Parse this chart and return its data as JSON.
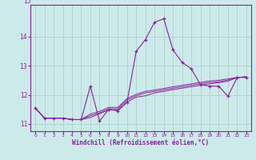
{
  "xlabel": "Windchill (Refroidissement éolien,°C)",
  "hours": [
    0,
    1,
    2,
    3,
    4,
    5,
    6,
    7,
    8,
    9,
    10,
    11,
    12,
    13,
    14,
    15,
    16,
    17,
    18,
    19,
    20,
    21,
    22,
    23
  ],
  "main_line": [
    11.55,
    11.2,
    11.2,
    11.2,
    11.15,
    11.15,
    12.3,
    11.1,
    11.5,
    11.45,
    11.75,
    13.5,
    13.9,
    14.5,
    14.62,
    13.55,
    13.12,
    12.9,
    12.35,
    12.3,
    12.3,
    11.95,
    12.6,
    12.6
  ],
  "line2": [
    11.55,
    11.2,
    11.2,
    11.2,
    11.15,
    11.15,
    11.22,
    11.35,
    11.48,
    11.48,
    11.75,
    11.92,
    11.97,
    12.07,
    12.12,
    12.18,
    12.23,
    12.28,
    12.33,
    12.38,
    12.42,
    12.47,
    12.6,
    12.62
  ],
  "line3": [
    11.55,
    11.2,
    11.2,
    11.2,
    11.15,
    11.15,
    11.28,
    11.38,
    11.52,
    11.52,
    11.82,
    11.97,
    12.07,
    12.12,
    12.17,
    12.23,
    12.28,
    12.33,
    12.38,
    12.43,
    12.45,
    12.51,
    12.6,
    12.62
  ],
  "line4": [
    11.55,
    11.2,
    11.2,
    11.2,
    11.15,
    11.15,
    11.34,
    11.43,
    11.57,
    11.57,
    11.87,
    12.02,
    12.12,
    12.17,
    12.22,
    12.28,
    12.33,
    12.38,
    12.43,
    12.48,
    12.5,
    12.55,
    12.6,
    12.62
  ],
  "line_color": "#882299",
  "bg_color": "#cceaea",
  "grid_color": "#aacccc",
  "ylim": [
    10.75,
    15.1
  ],
  "yticks": [
    11,
    12,
    13,
    14
  ],
  "xlim": [
    -0.5,
    23.5
  ]
}
